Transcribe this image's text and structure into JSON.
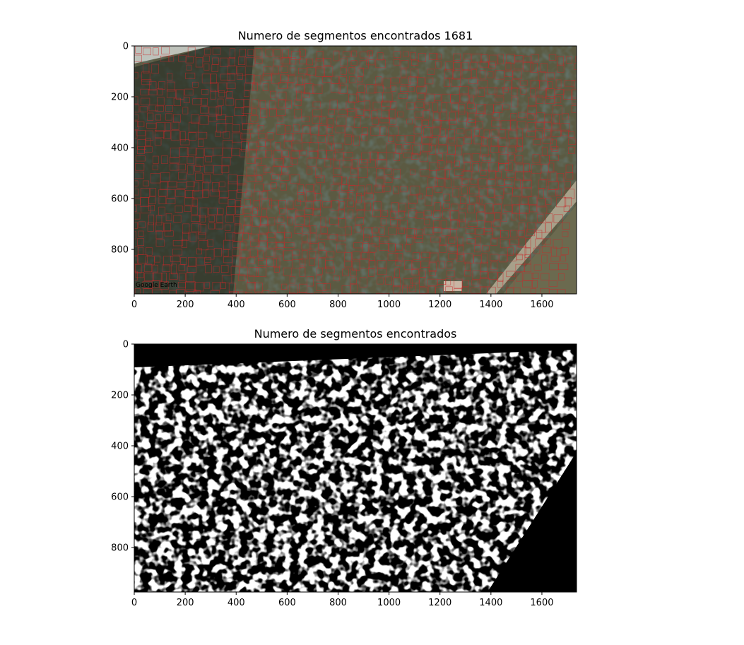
{
  "chart_data": [
    {
      "type": "image",
      "title": "Numero de segmentos encontrados 1681",
      "image_description": "aerial orchard satellite image with red bounding boxes",
      "watermark": "Google Earth",
      "xlim": [
        0,
        1736
      ],
      "ylim": [
        975,
        0
      ],
      "xticks": [
        0,
        200,
        400,
        600,
        800,
        1000,
        1200,
        1400,
        1600
      ],
      "yticks": [
        0,
        200,
        400,
        600,
        800
      ],
      "colors": {
        "ground": "#5b5a42",
        "tree": "#1f2a22",
        "box": "#c8282a",
        "road": "#a8a08a"
      }
    },
    {
      "type": "image",
      "title": "Numero de segmentos encontrados",
      "image_description": "binary segmentation mask, white tree canopies on black",
      "xlim": [
        0,
        1736
      ],
      "ylim": [
        975,
        0
      ],
      "xticks": [
        0,
        200,
        400,
        600,
        800,
        1000,
        1200,
        1400,
        1600
      ],
      "yticks": [
        0,
        200,
        400,
        600,
        800
      ],
      "colors": {
        "background": "#000000",
        "foreground": "#ffffff"
      }
    }
  ]
}
